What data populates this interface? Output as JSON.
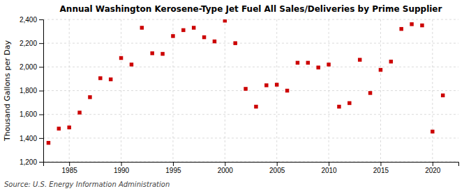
{
  "chart_data": {
    "type": "scatter",
    "title": "Annual Washington Kerosene-Type Jet Fuel All Sales/Deliveries by Prime Supplier",
    "ylabel": "Thousand Gallons per Day",
    "annotations": [
      "Source: U.S. Energy Information Administration"
    ],
    "x": [
      1983,
      1984,
      1985,
      1986,
      1987,
      1988,
      1989,
      1990,
      1991,
      1992,
      1993,
      1994,
      1995,
      1996,
      1997,
      1998,
      1999,
      2000,
      2001,
      2002,
      2003,
      2004,
      2005,
      2006,
      2007,
      2008,
      2009,
      2010,
      2011,
      2012,
      2013,
      2014,
      2015,
      2016,
      2017,
      2018,
      2019,
      2020,
      2021
    ],
    "values": [
      1360,
      1480,
      1490,
      1615,
      1745,
      1905,
      1895,
      2075,
      2020,
      2330,
      2115,
      2110,
      2260,
      2310,
      2330,
      2250,
      2215,
      2390,
      2200,
      1815,
      1665,
      1845,
      1850,
      1800,
      2035,
      2035,
      1995,
      2020,
      1665,
      1695,
      2060,
      1780,
      1975,
      2045,
      2320,
      2360,
      2350,
      1455,
      1760
    ],
    "color": "#cc0000",
    "marker": "square",
    "xlim": [
      1982.5,
      2022.5
    ],
    "xticks": [
      1985,
      1990,
      1995,
      2000,
      2005,
      2010,
      2015,
      2020
    ],
    "ylim": [
      1200,
      2400
    ],
    "yticks": [
      {
        "value": 1200,
        "label": "1,200"
      },
      {
        "value": 1400,
        "label": "1,400"
      },
      {
        "value": 1600,
        "label": "1,600"
      },
      {
        "value": 1800,
        "label": "1,800"
      },
      {
        "value": 2000,
        "label": "2,000"
      },
      {
        "value": 2200,
        "label": "2,200"
      },
      {
        "value": 2400,
        "label": "2,400"
      }
    ],
    "grid": true
  }
}
